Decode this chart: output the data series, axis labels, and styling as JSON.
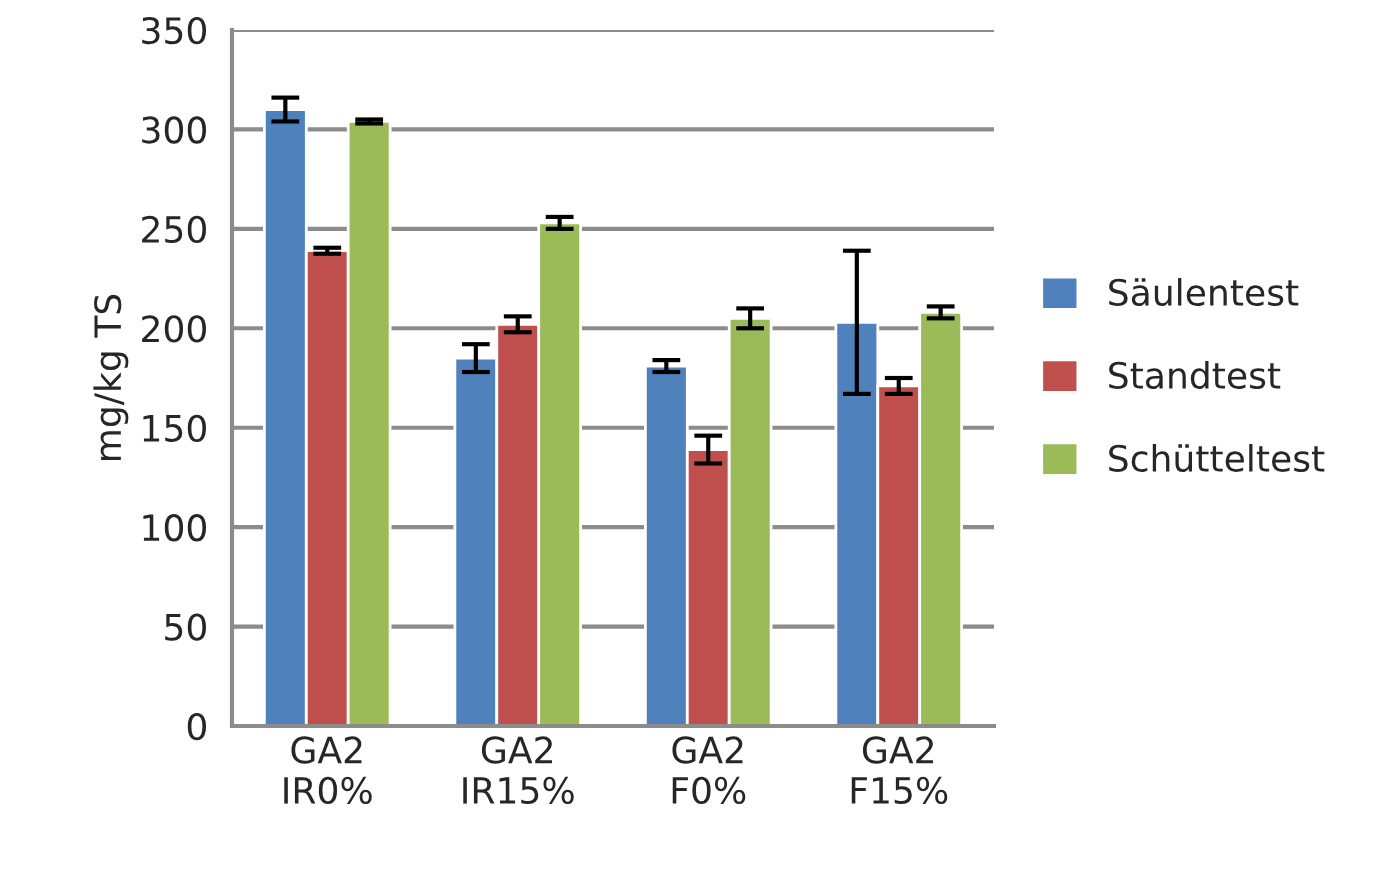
{
  "chart_data": {
    "type": "bar",
    "ylabel": "mg/kg TS",
    "categories": [
      "GA2\nIR0%",
      "GA2\nIR15%",
      "GA2\nF0%",
      "GA2\nF15%"
    ],
    "series": [
      {
        "name": "Säulentest",
        "color": "#4f81bd",
        "values": [
          310,
          185,
          181,
          203
        ],
        "errors": [
          6,
          7,
          3,
          36
        ]
      },
      {
        "name": "Standtest",
        "color": "#c0504d",
        "values": [
          239,
          202,
          139,
          171
        ],
        "errors": [
          1.5,
          4,
          7,
          4
        ]
      },
      {
        "name": "Schütteltest",
        "color": "#9bbb59",
        "values": [
          304,
          253,
          205,
          208
        ],
        "errors": [
          1,
          3,
          5,
          3
        ]
      }
    ],
    "ylim": [
      0,
      350
    ],
    "yticks": [
      0,
      50,
      100,
      150,
      200,
      250,
      300,
      350
    ],
    "grid": "y",
    "legend": "right"
  }
}
